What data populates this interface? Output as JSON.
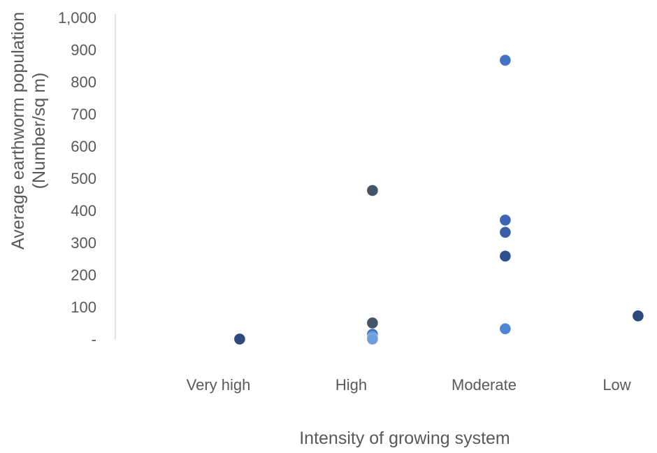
{
  "chart_data": {
    "type": "scatter",
    "title": "",
    "xlabel": "Intensity of growing system",
    "ylabel_line1": "Average earthworm population",
    "ylabel_line2": "(Number/sq m)",
    "categories": [
      "Very high",
      "High",
      "Moderate",
      "Low"
    ],
    "y_ticks": [
      "-",
      "100",
      "200",
      "300",
      "400",
      "500",
      "600",
      "700",
      "800",
      "900",
      "1,000"
    ],
    "ylim": [
      0,
      1000
    ],
    "grid": false,
    "legend": "none",
    "points": [
      {
        "category": "Very high",
        "offset": 0.16,
        "value": 0,
        "color": "#2e4a7d"
      },
      {
        "category": "High",
        "offset": 0.16,
        "value": 462,
        "color": "#44546a"
      },
      {
        "category": "High",
        "offset": 0.16,
        "value": 50,
        "color": "#44546a"
      },
      {
        "category": "High",
        "offset": 0.16,
        "value": 15,
        "color": "#4472c4"
      },
      {
        "category": "High",
        "offset": 0.16,
        "value": 5,
        "color": "#5b8fd6"
      },
      {
        "category": "High",
        "offset": 0.16,
        "value": 0,
        "color": "#6f9ee0"
      },
      {
        "category": "Moderate",
        "offset": 0.16,
        "value": 867,
        "color": "#4472c4"
      },
      {
        "category": "Moderate",
        "offset": 0.16,
        "value": 370,
        "color": "#3c64b4"
      },
      {
        "category": "Moderate",
        "offset": 0.16,
        "value": 332,
        "color": "#3a5ea8"
      },
      {
        "category": "Moderate",
        "offset": 0.16,
        "value": 258,
        "color": "#2f4f8f"
      },
      {
        "category": "Moderate",
        "offset": 0.16,
        "value": 32,
        "color": "#4e86d6"
      },
      {
        "category": "Low",
        "offset": 0.16,
        "value": 72,
        "color": "#2e4a7d"
      }
    ],
    "colors": {
      "axis_line": "#d9d9d9",
      "text": "#595959"
    }
  }
}
